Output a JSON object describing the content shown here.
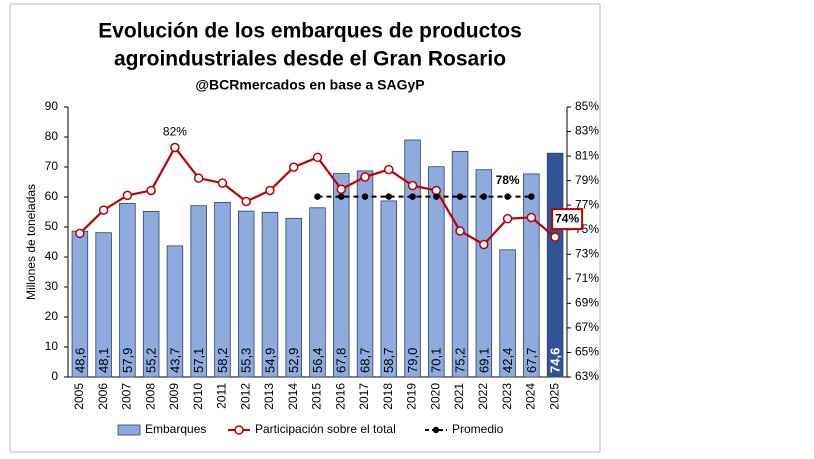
{
  "chart_data": {
    "type": "bar_line",
    "title": [
      "Evolución de los embarques de productos",
      "agroindustriales desde el Gran Rosario"
    ],
    "subtitle": "@BCRmercados en base a SAGyP",
    "y_label": "Millones de toneladas",
    "categories": [
      "2005",
      "2006",
      "2007",
      "2008",
      "2009",
      "2010",
      "2011",
      "2012",
      "2013",
      "2014",
      "2015",
      "2016",
      "2017",
      "2018",
      "2019",
      "2020",
      "2021",
      "2022",
      "2023",
      "2024",
      "2025"
    ],
    "ylim": [
      0,
      90
    ],
    "yticks": [
      0,
      10,
      20,
      30,
      40,
      50,
      60,
      70,
      80,
      90
    ],
    "y2lim": [
      63,
      85
    ],
    "y2ticks": [
      {
        "value": 63,
        "label": "63%"
      },
      {
        "value": 65,
        "label": "65%"
      },
      {
        "value": 67,
        "label": "67%"
      },
      {
        "value": 69,
        "label": "69%"
      },
      {
        "value": 71,
        "label": "71%"
      },
      {
        "value": 73,
        "label": "73%"
      },
      {
        "value": 75,
        "label": "75%"
      },
      {
        "value": 77,
        "label": "77%"
      },
      {
        "value": 79,
        "label": "79%"
      },
      {
        "value": 81,
        "label": "81%"
      },
      {
        "value": 83,
        "label": "83%"
      },
      {
        "value": 85,
        "label": "85%"
      }
    ],
    "series": [
      {
        "name": "Embarques",
        "kind": "bar",
        "color": "#8faadc",
        "colors": [
          "#8faadc",
          "#8faadc",
          "#8faadc",
          "#8faadc",
          "#8faadc",
          "#8faadc",
          "#8faadc",
          "#8faadc",
          "#8faadc",
          "#8faadc",
          "#8faadc",
          "#8faadc",
          "#8faadc",
          "#8faadc",
          "#8faadc",
          "#8faadc",
          "#8faadc",
          "#8faadc",
          "#8faadc",
          "#8faadc",
          "#2f5597"
        ],
        "values": [
          48.6,
          48.1,
          57.9,
          55.2,
          43.7,
          57.1,
          58.2,
          55.3,
          54.9,
          52.9,
          56.4,
          67.8,
          68.7,
          58.7,
          79.0,
          70.1,
          75.2,
          69.1,
          42.4,
          67.7,
          74.6
        ],
        "value_labels": [
          "48,6",
          "48,1",
          "57,9",
          "55,2",
          "43,7",
          "57,1",
          "58,2",
          "55,3",
          "54,9",
          "52,9",
          "56,4",
          "67,8",
          "68,7",
          "58,7",
          "79,0",
          "70,1",
          "75,2",
          "69,1",
          "42,4",
          "67,7",
          "74,6"
        ]
      },
      {
        "name": "Participación sobre el total",
        "kind": "line",
        "axis": "y2",
        "color": "#c00000",
        "values": [
          74.7,
          76.6,
          77.8,
          78.2,
          81.7,
          79.2,
          78.8,
          77.3,
          78.2,
          80.1,
          80.9,
          78.3,
          79.3,
          79.9,
          78.6,
          78.2,
          74.9,
          73.8,
          75.9,
          76.0,
          74.4
        ],
        "point_labels": [
          null,
          null,
          null,
          null,
          "82%",
          null,
          null,
          null,
          null,
          null,
          null,
          null,
          null,
          null,
          null,
          null,
          null,
          null,
          null,
          null,
          "74%"
        ]
      },
      {
        "name": "Promedio",
        "kind": "dashed",
        "axis": "y2",
        "color": "#000000",
        "values": [
          null,
          null,
          null,
          null,
          null,
          null,
          null,
          null,
          null,
          null,
          77.7,
          77.7,
          77.7,
          77.7,
          77.7,
          77.7,
          77.7,
          77.7,
          77.7,
          77.7,
          null
        ],
        "point_labels": [
          null,
          null,
          null,
          null,
          null,
          null,
          null,
          null,
          null,
          null,
          null,
          null,
          null,
          null,
          null,
          null,
          null,
          null,
          "78%",
          null,
          null
        ]
      }
    ]
  }
}
